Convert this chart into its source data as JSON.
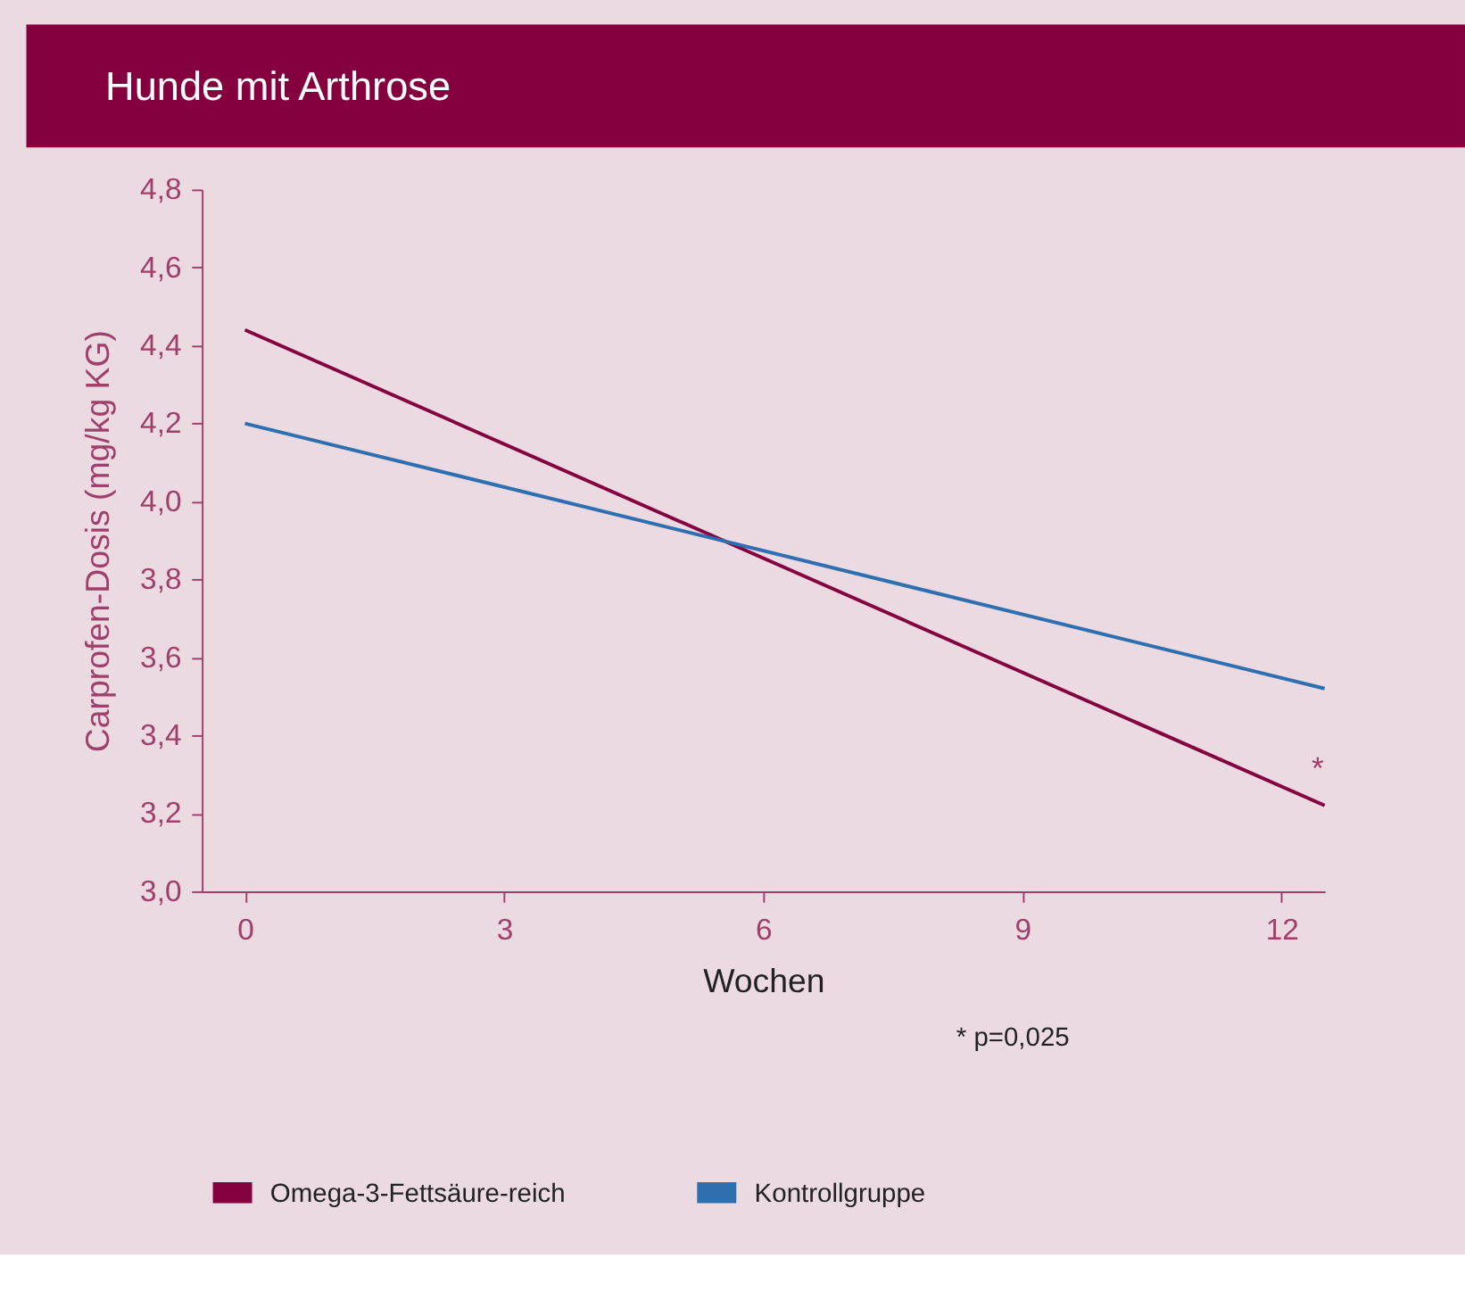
{
  "chart_data": {
    "type": "line",
    "title": "Hunde mit Arthrose",
    "xlabel": "Wochen",
    "ylabel": "Carprofen-Dosis (mg/kg KG)",
    "x": [
      0,
      12.5
    ],
    "series": [
      {
        "name": "Omega-3-Fettsäure-reich",
        "color": "#85003f",
        "values": [
          4.44,
          3.22
        ]
      },
      {
        "name": "Kontrollgruppe",
        "color": "#2e6fb0",
        "values": [
          4.2,
          3.52
        ]
      }
    ],
    "xlim": [
      -0.5,
      12.5
    ],
    "xticks": [
      0,
      3,
      6,
      9,
      12
    ],
    "ylim": [
      3.0,
      4.8
    ],
    "yticks": [
      {
        "value": 3.0,
        "label": "3,0"
      },
      {
        "value": 3.2,
        "label": "3,2"
      },
      {
        "value": 3.4,
        "label": "3,4"
      },
      {
        "value": 3.6,
        "label": "3,6"
      },
      {
        "value": 3.8,
        "label": "3,8"
      },
      {
        "value": 4.0,
        "label": "4,0"
      },
      {
        "value": 4.2,
        "label": "4,2"
      },
      {
        "value": 4.4,
        "label": "4,4"
      },
      {
        "value": 4.6,
        "label": "4,6"
      },
      {
        "value": 4.8,
        "label": "4,8"
      }
    ],
    "annotations": [
      {
        "text": "*",
        "x": 12.5,
        "y": 3.22
      },
      "* p=0,025"
    ],
    "grid": false,
    "legend": "bottom",
    "marker": "none",
    "line_style": "solid"
  }
}
